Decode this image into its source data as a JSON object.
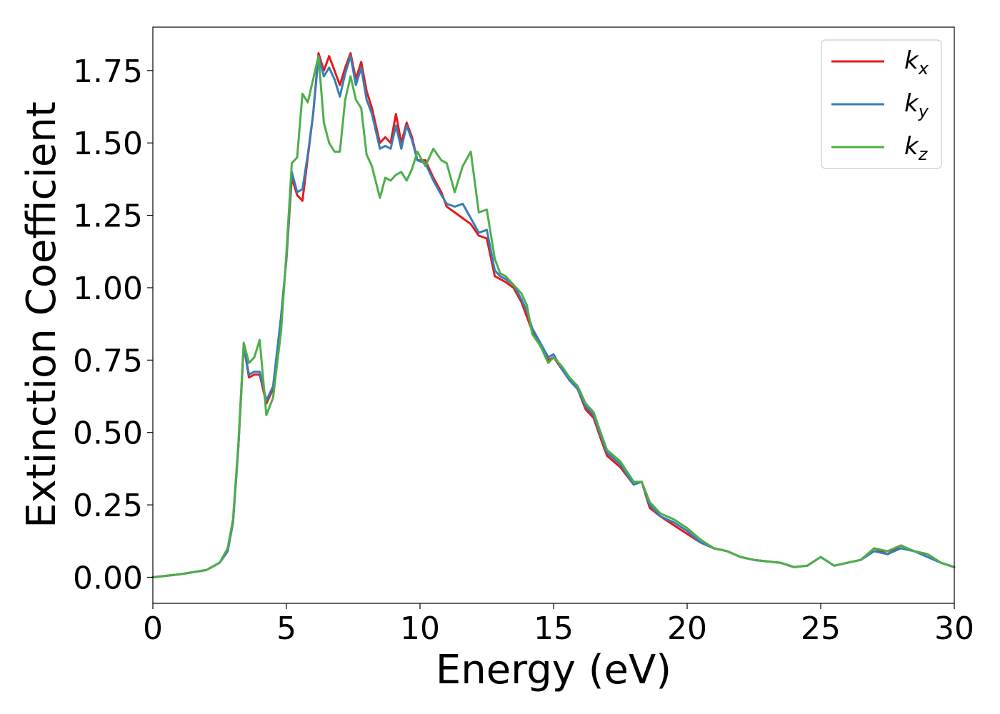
{
  "chart_data": {
    "type": "line",
    "title": "",
    "xlabel": "Energy (eV)",
    "ylabel": "Extinction Coefficient",
    "xlim": [
      0,
      30
    ],
    "ylim": [
      -0.09,
      1.9
    ],
    "xticks": [
      0,
      5,
      10,
      15,
      20,
      25,
      30
    ],
    "xtick_labels": [
      "0",
      "5",
      "10",
      "15",
      "20",
      "25",
      "30"
    ],
    "yticks": [
      0.0,
      0.25,
      0.5,
      0.75,
      1.0,
      1.25,
      1.5,
      1.75
    ],
    "ytick_labels": [
      "0.00",
      "0.25",
      "0.50",
      "0.75",
      "1.00",
      "1.25",
      "1.50",
      "1.75"
    ],
    "grid": false,
    "legend": {
      "placement": "top-right",
      "entries": [
        {
          "base": "k",
          "sub": "x",
          "color": "#e41a1c"
        },
        {
          "base": "k",
          "sub": "y",
          "color": "#377eb8"
        },
        {
          "base": "k",
          "sub": "z",
          "color": "#4daf4a"
        }
      ]
    },
    "series": [
      {
        "name": "kx",
        "color": "#e41a1c",
        "x": [
          0,
          1,
          2,
          2.5,
          2.8,
          3.0,
          3.2,
          3.4,
          3.6,
          3.8,
          4.0,
          4.25,
          4.5,
          4.8,
          5.0,
          5.2,
          5.4,
          5.6,
          5.8,
          6.0,
          6.2,
          6.4,
          6.6,
          6.8,
          7.0,
          7.2,
          7.4,
          7.6,
          7.8,
          8.0,
          8.2,
          8.5,
          8.7,
          8.9,
          9.1,
          9.3,
          9.5,
          9.7,
          9.9,
          10.2,
          10.5,
          10.8,
          11.0,
          11.3,
          11.6,
          11.9,
          12.2,
          12.5,
          12.8,
          13.0,
          13.2,
          13.5,
          13.8,
          14.0,
          14.2,
          14.5,
          14.8,
          15.0,
          15.3,
          15.6,
          15.9,
          16.2,
          16.5,
          16.8,
          17.0,
          17.5,
          18.0,
          18.3,
          18.6,
          19.0,
          19.5,
          20.0,
          20.5,
          21.0,
          21.5,
          22.0,
          22.5,
          23.0,
          23.5,
          24.0,
          24.5,
          25.0,
          25.5,
          26.0,
          26.5,
          27.0,
          27.5,
          28.0,
          28.5,
          29.0,
          29.5,
          30.0
        ],
        "y": [
          0,
          0.01,
          0.025,
          0.05,
          0.09,
          0.19,
          0.45,
          0.8,
          0.69,
          0.7,
          0.7,
          0.6,
          0.65,
          0.9,
          1.1,
          1.38,
          1.32,
          1.3,
          1.45,
          1.6,
          1.81,
          1.75,
          1.8,
          1.75,
          1.7,
          1.76,
          1.81,
          1.72,
          1.78,
          1.68,
          1.62,
          1.5,
          1.52,
          1.5,
          1.6,
          1.5,
          1.57,
          1.52,
          1.44,
          1.44,
          1.38,
          1.33,
          1.28,
          1.26,
          1.24,
          1.22,
          1.18,
          1.17,
          1.04,
          1.03,
          1.02,
          1.0,
          0.95,
          0.9,
          0.85,
          0.8,
          0.75,
          0.76,
          0.72,
          0.68,
          0.65,
          0.58,
          0.55,
          0.47,
          0.42,
          0.38,
          0.32,
          0.33,
          0.24,
          0.21,
          0.18,
          0.15,
          0.12,
          0.1,
          0.09,
          0.07,
          0.06,
          0.055,
          0.05,
          0.035,
          0.04,
          0.07,
          0.04,
          0.05,
          0.06,
          0.1,
          0.08,
          0.11,
          0.09,
          0.08,
          0.05,
          0.035
        ]
      },
      {
        "name": "ky",
        "color": "#377eb8",
        "x": [
          0,
          1,
          2,
          2.5,
          2.8,
          3.0,
          3.2,
          3.4,
          3.6,
          3.8,
          4.0,
          4.25,
          4.5,
          4.8,
          5.0,
          5.2,
          5.4,
          5.6,
          5.8,
          6.0,
          6.2,
          6.4,
          6.6,
          6.8,
          7.0,
          7.2,
          7.4,
          7.6,
          7.8,
          8.0,
          8.2,
          8.5,
          8.7,
          8.9,
          9.1,
          9.3,
          9.5,
          9.7,
          9.9,
          10.2,
          10.5,
          10.8,
          11.0,
          11.3,
          11.6,
          11.9,
          12.2,
          12.5,
          12.8,
          13.0,
          13.2,
          13.5,
          13.8,
          14.0,
          14.2,
          14.5,
          14.8,
          15.0,
          15.3,
          15.6,
          15.9,
          16.2,
          16.5,
          16.8,
          17.0,
          17.5,
          18.0,
          18.3,
          18.6,
          19.0,
          19.5,
          20.0,
          20.5,
          21.0,
          21.5,
          22.0,
          22.5,
          23.0,
          23.5,
          24.0,
          24.5,
          25.0,
          25.5,
          26.0,
          26.5,
          27.0,
          27.5,
          28.0,
          28.5,
          29.0,
          29.5,
          30.0
        ],
        "y": [
          0,
          0.01,
          0.025,
          0.05,
          0.09,
          0.19,
          0.45,
          0.8,
          0.7,
          0.71,
          0.71,
          0.61,
          0.66,
          0.9,
          1.1,
          1.4,
          1.33,
          1.34,
          1.46,
          1.6,
          1.8,
          1.73,
          1.76,
          1.72,
          1.66,
          1.74,
          1.8,
          1.7,
          1.76,
          1.65,
          1.6,
          1.48,
          1.49,
          1.48,
          1.56,
          1.48,
          1.56,
          1.51,
          1.44,
          1.43,
          1.37,
          1.32,
          1.29,
          1.28,
          1.29,
          1.24,
          1.19,
          1.2,
          1.06,
          1.04,
          1.03,
          1.01,
          0.96,
          0.92,
          0.86,
          0.81,
          0.76,
          0.77,
          0.72,
          0.68,
          0.65,
          0.59,
          0.56,
          0.48,
          0.43,
          0.39,
          0.32,
          0.33,
          0.25,
          0.21,
          0.19,
          0.16,
          0.12,
          0.1,
          0.09,
          0.07,
          0.06,
          0.055,
          0.05,
          0.035,
          0.04,
          0.07,
          0.04,
          0.05,
          0.06,
          0.09,
          0.08,
          0.1,
          0.09,
          0.07,
          0.05,
          0.035
        ]
      },
      {
        "name": "kz",
        "color": "#4daf4a",
        "x": [
          0,
          1,
          2,
          2.5,
          2.8,
          3.0,
          3.2,
          3.4,
          3.6,
          3.8,
          4.0,
          4.25,
          4.5,
          4.8,
          5.0,
          5.2,
          5.4,
          5.6,
          5.8,
          6.0,
          6.2,
          6.4,
          6.6,
          6.8,
          7.0,
          7.2,
          7.4,
          7.6,
          7.8,
          8.0,
          8.2,
          8.5,
          8.7,
          8.9,
          9.1,
          9.3,
          9.5,
          9.7,
          9.9,
          10.2,
          10.5,
          10.8,
          11.0,
          11.3,
          11.6,
          11.9,
          12.2,
          12.5,
          12.8,
          13.0,
          13.2,
          13.5,
          13.8,
          14.0,
          14.2,
          14.5,
          14.8,
          15.0,
          15.3,
          15.6,
          15.9,
          16.2,
          16.5,
          16.8,
          17.0,
          17.5,
          18.0,
          18.3,
          18.6,
          19.0,
          19.5,
          20.0,
          20.5,
          21.0,
          21.5,
          22.0,
          22.5,
          23.0,
          23.5,
          24.0,
          24.5,
          25.0,
          25.5,
          26.0,
          26.5,
          27.0,
          27.5,
          28.0,
          28.5,
          29.0,
          29.5,
          30.0
        ],
        "y": [
          0,
          0.01,
          0.025,
          0.05,
          0.1,
          0.2,
          0.46,
          0.81,
          0.74,
          0.76,
          0.82,
          0.56,
          0.62,
          0.85,
          1.12,
          1.43,
          1.45,
          1.67,
          1.64,
          1.72,
          1.8,
          1.57,
          1.5,
          1.47,
          1.47,
          1.65,
          1.73,
          1.65,
          1.62,
          1.46,
          1.42,
          1.31,
          1.38,
          1.37,
          1.39,
          1.4,
          1.37,
          1.41,
          1.47,
          1.42,
          1.48,
          1.44,
          1.43,
          1.33,
          1.42,
          1.47,
          1.26,
          1.27,
          1.1,
          1.05,
          1.04,
          1.01,
          0.98,
          0.94,
          0.84,
          0.8,
          0.74,
          0.76,
          0.73,
          0.69,
          0.66,
          0.6,
          0.57,
          0.49,
          0.44,
          0.4,
          0.33,
          0.33,
          0.26,
          0.22,
          0.2,
          0.17,
          0.13,
          0.1,
          0.09,
          0.07,
          0.06,
          0.055,
          0.05,
          0.035,
          0.04,
          0.07,
          0.04,
          0.05,
          0.06,
          0.1,
          0.09,
          0.11,
          0.09,
          0.08,
          0.05,
          0.035
        ]
      }
    ]
  }
}
